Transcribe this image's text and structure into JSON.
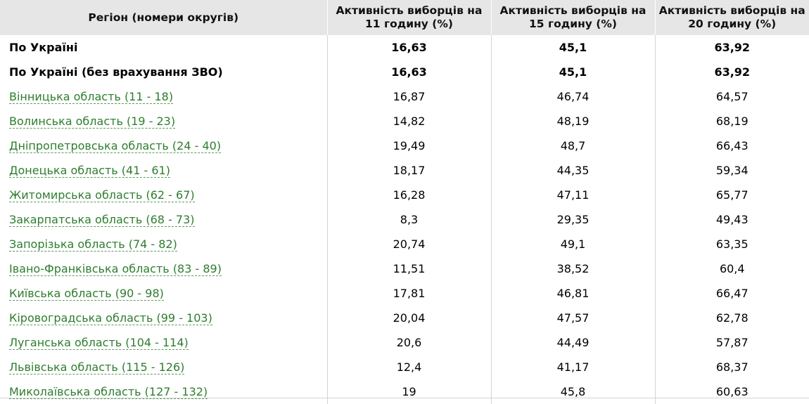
{
  "headers": [
    "Регіон (номери округів)",
    "Активність виборців на 11 годину (%)",
    "Активність виборців на 15 годину (%)",
    "Активність виборців на 20 годину (%)"
  ],
  "totals": [
    {
      "region": "По Україні",
      "h11": "16,63",
      "h15": "45,1",
      "h20": "63,92"
    },
    {
      "region": "По Україні (без врахування ЗВО)",
      "h11": "16,63",
      "h15": "45,1",
      "h20": "63,92"
    }
  ],
  "rows": [
    {
      "region": "Вінницька область (11 - 18)",
      "h11": "16,87",
      "h15": "46,74",
      "h20": "64,57"
    },
    {
      "region": "Волинська область (19 - 23)",
      "h11": "14,82",
      "h15": "48,19",
      "h20": "68,19"
    },
    {
      "region": "Дніпропетровська область (24 - 40)",
      "h11": "19,49",
      "h15": "48,7",
      "h20": "66,43"
    },
    {
      "region": "Донецька область (41 - 61)",
      "h11": "18,17",
      "h15": "44,35",
      "h20": "59,34"
    },
    {
      "region": "Житомирська область (62 - 67)",
      "h11": "16,28",
      "h15": "47,11",
      "h20": "65,77"
    },
    {
      "region": "Закарпатська область (68 - 73)",
      "h11": "8,3",
      "h15": "29,35",
      "h20": "49,43"
    },
    {
      "region": "Запорізька область (74 - 82)",
      "h11": "20,74",
      "h15": "49,1",
      "h20": "63,35"
    },
    {
      "region": "Івано-Франківська область (83 - 89)",
      "h11": "11,51",
      "h15": "38,52",
      "h20": "60,4"
    },
    {
      "region": "Київська область (90 - 98)",
      "h11": "17,81",
      "h15": "46,81",
      "h20": "66,47"
    },
    {
      "region": "Кіровоградська область (99 - 103)",
      "h11": "20,04",
      "h15": "47,57",
      "h20": "62,78"
    },
    {
      "region": "Луганська область (104 - 114)",
      "h11": "20,6",
      "h15": "44,49",
      "h20": "57,87"
    },
    {
      "region": "Львівська область (115 - 126)",
      "h11": "12,4",
      "h15": "41,17",
      "h20": "68,37"
    },
    {
      "region": "Миколаївська область (127 - 132)",
      "h11": "19",
      "h15": "45,8",
      "h20": "60,63"
    }
  ]
}
